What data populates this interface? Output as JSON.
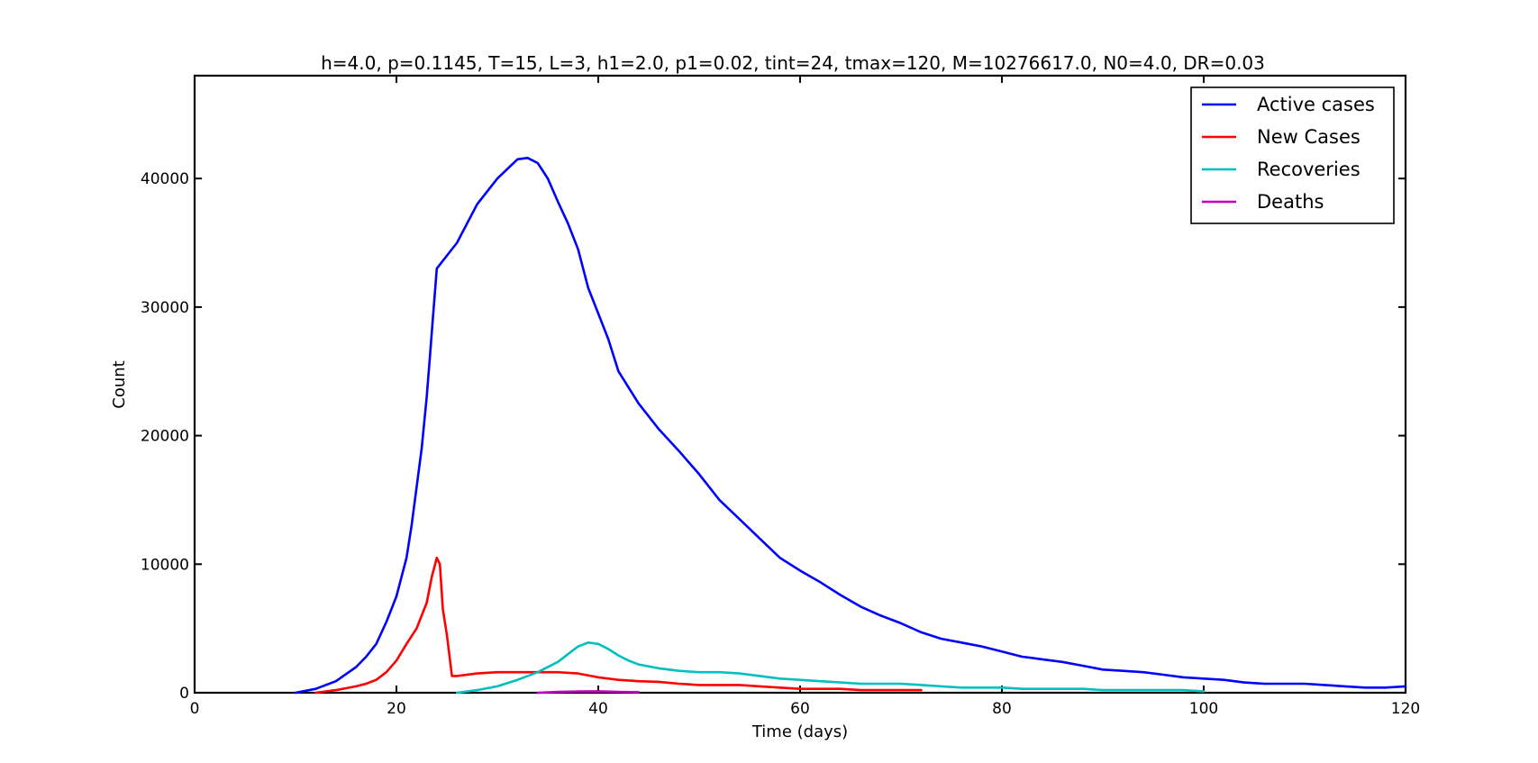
{
  "chart_data": {
    "type": "line",
    "title": "h=4.0, p=0.1145, T=15, L=3, h1=2.0, p1=0.02, tint=24, tmax=120, M=10276617.0, N0=4.0, DR=0.03",
    "xlabel": "Time (days)",
    "ylabel": "Count",
    "xlim": [
      0,
      120
    ],
    "ylim": [
      0,
      48000
    ],
    "xticks": [
      0,
      20,
      40,
      60,
      80,
      100,
      120
    ],
    "yticks": [
      0,
      10000,
      20000,
      30000,
      40000
    ],
    "xtick_labels": [
      "0",
      "20",
      "40",
      "60",
      "80",
      "100",
      "120"
    ],
    "ytick_labels": [
      "0",
      "10000",
      "20000",
      "30000",
      "40000"
    ],
    "grid": false,
    "legend_position": "top-right",
    "series": [
      {
        "name": "Active cases",
        "color": "#0000ff",
        "x": [
          10,
          12,
          14,
          16,
          17,
          18,
          19,
          20,
          21,
          21.5,
          22,
          22.5,
          23,
          23.3,
          23.6,
          24,
          24.5,
          26,
          28,
          30,
          32,
          33,
          34,
          35,
          36,
          37,
          38,
          39,
          40,
          41,
          42,
          44,
          46,
          48,
          50,
          52,
          54,
          56,
          58,
          60,
          62,
          64,
          66,
          68,
          70,
          72,
          74,
          76,
          78,
          80,
          82,
          84,
          86,
          88,
          90,
          92,
          94,
          96,
          98,
          100,
          102,
          104,
          106,
          108,
          110,
          112,
          114,
          116,
          118,
          120
        ],
        "y": [
          0,
          300,
          900,
          2000,
          2800,
          3800,
          5500,
          7500,
          10500,
          13000,
          16000,
          19000,
          23000,
          26000,
          29000,
          33000,
          33500,
          35000,
          38000,
          40000,
          41500,
          41600,
          41200,
          40000,
          38200,
          36500,
          34500,
          31500,
          29500,
          27500,
          25000,
          22500,
          20500,
          18800,
          17000,
          15000,
          13500,
          12000,
          10500,
          9500,
          8600,
          7600,
          6700,
          6000,
          5400,
          4700,
          4200,
          3900,
          3600,
          3200,
          2800,
          2600,
          2400,
          2100,
          1800,
          1700,
          1600,
          1400,
          1200,
          1100,
          1000,
          800,
          700,
          700,
          700,
          600,
          500,
          400,
          400,
          500
        ]
      },
      {
        "name": "New Cases",
        "color": "#ff0000",
        "x": [
          12,
          14,
          16,
          17,
          18,
          19,
          20,
          21,
          22,
          23,
          23.5,
          24,
          24.3,
          24.6,
          25,
          25.5,
          26,
          28,
          30,
          32,
          34,
          36,
          38,
          40,
          42,
          44,
          46,
          48,
          50,
          52,
          54,
          56,
          58,
          60,
          62,
          64,
          66,
          68,
          70,
          72
        ],
        "y": [
          0,
          200,
          500,
          700,
          1000,
          1600,
          2500,
          3800,
          5000,
          7000,
          9000,
          10500,
          10000,
          6500,
          4500,
          1300,
          1300,
          1500,
          1600,
          1600,
          1600,
          1600,
          1500,
          1200,
          1000,
          900,
          850,
          700,
          600,
          600,
          600,
          500,
          400,
          300,
          300,
          300,
          200,
          200,
          200,
          200
        ]
      },
      {
        "name": "Recoveries",
        "color": "#00bfbf",
        "x": [
          26,
          28,
          30,
          32,
          34,
          36,
          37,
          38,
          39,
          40,
          41,
          42,
          43,
          44,
          46,
          48,
          50,
          52,
          54,
          56,
          58,
          60,
          62,
          64,
          66,
          68,
          70,
          72,
          74,
          76,
          78,
          80,
          82,
          84,
          86,
          88,
          90,
          92,
          94,
          96,
          98,
          100
        ],
        "y": [
          0,
          200,
          500,
          1000,
          1600,
          2400,
          3000,
          3600,
          3900,
          3800,
          3400,
          2900,
          2500,
          2200,
          1900,
          1700,
          1600,
          1600,
          1500,
          1300,
          1100,
          1000,
          900,
          800,
          700,
          700,
          700,
          600,
          500,
          400,
          400,
          400,
          300,
          300,
          300,
          300,
          200,
          200,
          200,
          200,
          200,
          100
        ]
      },
      {
        "name": "Deaths",
        "color": "#bf00bf",
        "x": [
          34,
          36,
          38,
          40,
          42,
          44
        ],
        "y": [
          0,
          60,
          100,
          110,
          70,
          40
        ]
      }
    ]
  }
}
